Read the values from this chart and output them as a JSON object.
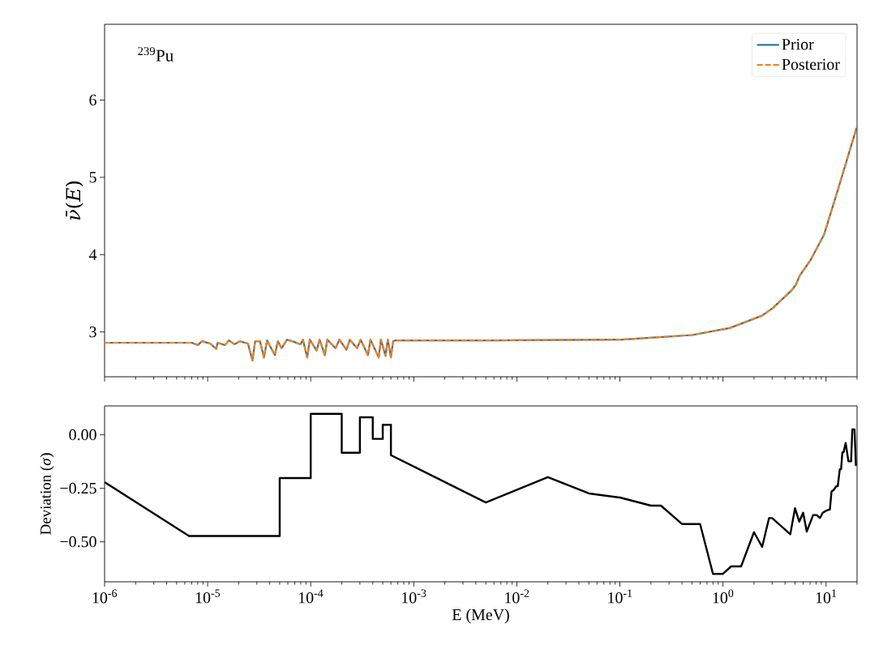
{
  "chart_data": [
    {
      "type": "line",
      "ylabel": "*ν̄*(*E*)",
      "log": "x",
      "legend": "top right",
      "tick_labels": "y",
      "annotations": [
        "$^{239}$Pu"
      ],
      "xlim": [
        1e-06,
        20
      ],
      "ylim": [
        2.42,
        6.98
      ],
      "xticks": [
        1e-06,
        1e-05,
        0.0001,
        0.001,
        0.01,
        0.1,
        1,
        10
      ],
      "yticks": [
        3,
        4,
        5,
        6
      ],
      "x": [
        1e-06,
        5e-06,
        7e-06,
        8.05e-06,
        8.8e-06,
        1.06e-05,
        1.21e-05,
        1.25e-05,
        1.47e-05,
        1.61e-05,
        1.82e-05,
        2.05e-05,
        2.46e-05,
        2.72e-05,
        2.89e-05,
        3.22e-05,
        3.52e-05,
        3.77e-05,
        4.49e-05,
        4.8e-05,
        5.22e-05,
        5.89e-05,
        6.64e-05,
        7.96e-05,
        8.4e-05,
        9.25e-05,
        9.8e-05,
        0.000114,
        0.000122,
        0.000137,
        0.000145,
        0.000174,
        0.00019,
        0.000222,
        0.00024,
        0.000282,
        0.000305,
        0.000359,
        0.00038,
        0.000457,
        0.00048,
        0.000532,
        0.00056,
        0.0006,
        0.00063,
        0.00066,
        0.0051,
        0.104,
        0.5,
        1.16,
        2.39,
        3.05,
        4.65,
        5.1,
        5.56,
        7.08,
        9.57,
        12.9,
        19.8
      ],
      "series": [
        {
          "name": "Prior",
          "color": "#1f77b4",
          "line_style": "solid",
          "values": [
            2.86,
            2.86,
            2.86,
            2.83,
            2.88,
            2.85,
            2.78,
            2.86,
            2.83,
            2.89,
            2.84,
            2.88,
            2.85,
            2.63,
            2.88,
            2.88,
            2.67,
            2.89,
            2.7,
            2.88,
            2.79,
            2.9,
            2.88,
            2.84,
            2.9,
            2.67,
            2.9,
            2.76,
            2.9,
            2.7,
            2.9,
            2.79,
            2.9,
            2.77,
            2.9,
            2.79,
            2.9,
            2.7,
            2.9,
            2.67,
            2.9,
            2.69,
            2.9,
            2.67,
            2.88,
            2.89,
            2.89,
            2.9,
            2.96,
            3.05,
            3.21,
            3.31,
            3.54,
            3.61,
            3.73,
            3.93,
            4.26,
            4.82,
            5.64
          ]
        },
        {
          "name": "Posterior",
          "color": "#ff7f0e",
          "line_style": "dashed",
          "values": [
            2.86,
            2.86,
            2.86,
            2.83,
            2.88,
            2.85,
            2.78,
            2.86,
            2.83,
            2.89,
            2.84,
            2.88,
            2.85,
            2.63,
            2.88,
            2.88,
            2.67,
            2.89,
            2.7,
            2.88,
            2.79,
            2.9,
            2.88,
            2.84,
            2.9,
            2.67,
            2.9,
            2.76,
            2.9,
            2.7,
            2.9,
            2.79,
            2.9,
            2.77,
            2.9,
            2.79,
            2.9,
            2.7,
            2.9,
            2.67,
            2.9,
            2.69,
            2.9,
            2.67,
            2.88,
            2.89,
            2.89,
            2.9,
            2.96,
            3.05,
            3.21,
            3.31,
            3.54,
            3.61,
            3.73,
            3.93,
            4.26,
            4.82,
            5.64
          ]
        }
      ]
    },
    {
      "type": "line",
      "xlabel": "E (MeV)",
      "ylabel": "Deviation (*σ*)",
      "log": "x",
      "xlim": [
        1e-06,
        20
      ],
      "ylim": [
        -0.687,
        0.135
      ],
      "xticks": [
        {
          "value": 1e-06,
          "label": "10$^{-6}$"
        },
        {
          "value": 1e-05,
          "label": "10$^{-5}$"
        },
        {
          "value": 0.0001,
          "label": "10$^{-4}$"
        },
        {
          "value": 0.001,
          "label": "10$^{-3}$"
        },
        {
          "value": 0.01,
          "label": "10$^{-2}$"
        },
        {
          "value": 0.1,
          "label": "10$^{-1}$"
        },
        {
          "value": 1,
          "label": "10$^{0}$"
        },
        {
          "value": 10,
          "label": "10$^{1}$"
        }
      ],
      "yticks": [
        {
          "value": 0,
          "label": "0.00"
        },
        {
          "value": -0.25,
          "label": "−0.25"
        },
        {
          "value": -0.5,
          "label": "−0.50"
        }
      ],
      "x": [
        1e-06,
        6.6e-06,
        5e-05,
        5e-05,
        0.0001,
        0.0001,
        0.0002,
        0.0002,
        0.0003,
        0.0003,
        0.0004,
        0.0004,
        0.0005,
        0.0005,
        0.0006,
        0.0006,
        0.005,
        0.02,
        0.05,
        0.1,
        0.2,
        0.25,
        0.4,
        0.6,
        0.8,
        1.0,
        1.2,
        1.5,
        2.0,
        2.4,
        2.8,
        3.0,
        4.5,
        5.0,
        5.5,
        6.0,
        6.5,
        7.5,
        8.1,
        8.75,
        9.3,
        10.2,
        10.9,
        11.3,
        11.8,
        12.6,
        13,
        13.6,
        14,
        14.4,
        14.8,
        15.5,
        16.5,
        17.5,
        18,
        18.9,
        19.5
      ],
      "series": [
        {
          "color": "#000000",
          "line_style": "solid",
          "values": [
            -0.221,
            -0.473,
            -0.473,
            -0.202,
            -0.202,
            0.098,
            0.098,
            -0.084,
            -0.084,
            0.082,
            0.082,
            -0.019,
            -0.019,
            0.047,
            0.047,
            -0.095,
            -0.316,
            -0.198,
            -0.274,
            -0.293,
            -0.331,
            -0.331,
            -0.417,
            -0.417,
            -0.65,
            -0.65,
            -0.615,
            -0.615,
            -0.455,
            -0.524,
            -0.389,
            -0.389,
            -0.465,
            -0.343,
            -0.406,
            -0.364,
            -0.452,
            -0.375,
            -0.375,
            -0.389,
            -0.364,
            -0.353,
            -0.349,
            -0.265,
            -0.259,
            -0.24,
            -0.24,
            -0.161,
            -0.161,
            -0.082,
            -0.082,
            -0.038,
            -0.124,
            -0.124,
            0.025,
            0.025,
            -0.145
          ]
        }
      ]
    }
  ]
}
